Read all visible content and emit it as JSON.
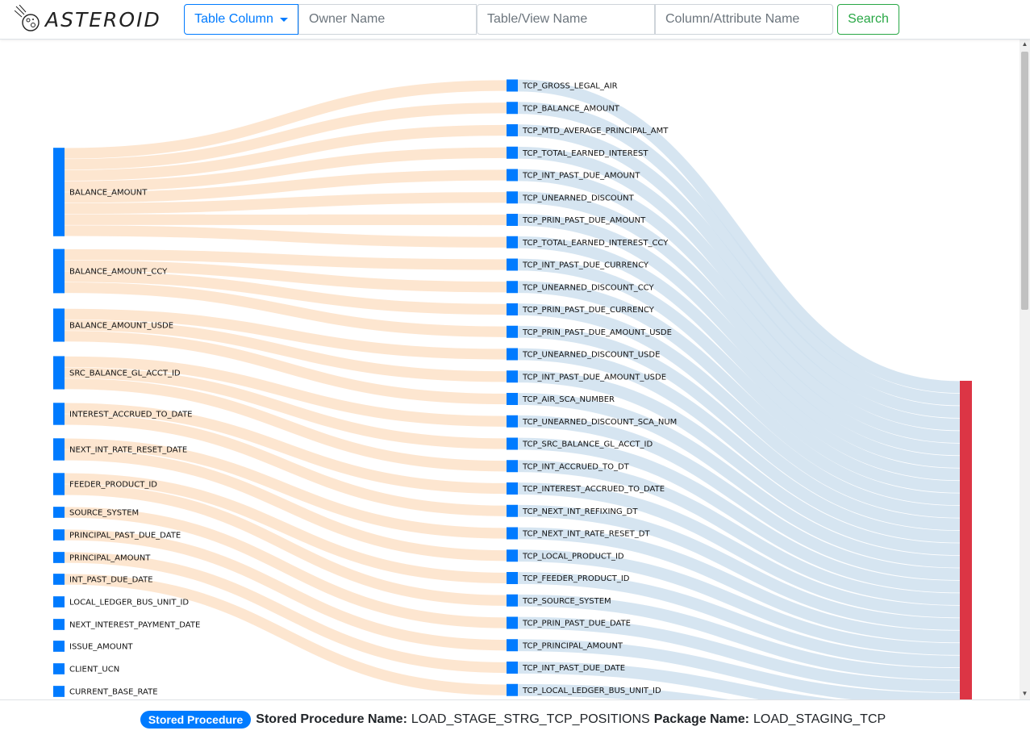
{
  "header": {
    "logo_text": "ASTEROID",
    "dropdown_label": "Table Column",
    "owner_placeholder": "Owner Name",
    "table_placeholder": "Table/View Name",
    "column_placeholder": "Column/Attribute Name",
    "search_label": "Search"
  },
  "diagram": {
    "sources": [
      {
        "label": "BALANCE_AMOUNT",
        "count": 8
      },
      {
        "label": "BALANCE_AMOUNT_CCY",
        "count": 4
      },
      {
        "label": "BALANCE_AMOUNT_USDE",
        "count": 3
      },
      {
        "label": "SRC_BALANCE_GL_ACCT_ID",
        "count": 3
      },
      {
        "label": "INTEREST_ACCRUED_TO_DATE",
        "count": 2
      },
      {
        "label": "NEXT_INT_RATE_RESET_DATE",
        "count": 2
      },
      {
        "label": "FEEDER_PRODUCT_ID",
        "count": 2
      },
      {
        "label": "SOURCE_SYSTEM",
        "count": 1
      },
      {
        "label": "PRINCIPAL_PAST_DUE_DATE",
        "count": 1
      },
      {
        "label": "PRINCIPAL_AMOUNT",
        "count": 1
      },
      {
        "label": "INT_PAST_DUE_DATE",
        "count": 1
      },
      {
        "label": "LOCAL_LEDGER_BUS_UNIT_ID",
        "count": 1
      },
      {
        "label": "NEXT_INTEREST_PAYMENT_DATE",
        "count": 1
      },
      {
        "label": "ISSUE_AMOUNT",
        "count": 1
      },
      {
        "label": "CLIENT_UCN",
        "count": 1
      },
      {
        "label": "CURRENT_BASE_RATE",
        "count": 1
      }
    ],
    "targets": [
      "TCP_GROSS_LEGAL_AIR",
      "TCP_BALANCE_AMOUNT",
      "TCP_MTD_AVERAGE_PRINCIPAL_AMT",
      "TCP_TOTAL_EARNED_INTEREST",
      "TCP_INT_PAST_DUE_AMOUNT",
      "TCP_UNEARNED_DISCOUNT",
      "TCP_PRIN_PAST_DUE_AMOUNT",
      "TCP_TOTAL_EARNED_INTEREST_CCY",
      "TCP_INT_PAST_DUE_CURRENCY",
      "TCP_UNEARNED_DISCOUNT_CCY",
      "TCP_PRIN_PAST_DUE_CURRENCY",
      "TCP_PRIN_PAST_DUE_AMOUNT_USDE",
      "TCP_UNEARNED_DISCOUNT_USDE",
      "TCP_INT_PAST_DUE_AMOUNT_USDE",
      "TCP_AIR_SCA_NUMBER",
      "TCP_UNEARNED_DISCOUNT_SCA_NUM",
      "TCP_SRC_BALANCE_GL_ACCT_ID",
      "TCP_INT_ACCRUED_TO_DT",
      "TCP_INTEREST_ACCRUED_TO_DATE",
      "TCP_NEXT_INT_REFIXING_DT",
      "TCP_NEXT_INT_RATE_RESET_DT",
      "TCP_LOCAL_PRODUCT_ID",
      "TCP_FEEDER_PRODUCT_ID",
      "TCP_SOURCE_SYSTEM",
      "TCP_PRIN_PAST_DUE_DATE",
      "TCP_PRINCIPAL_AMOUNT",
      "TCP_INT_PAST_DUE_DATE",
      "TCP_LOCAL_LEDGER_BUS_UNIT_ID"
    ],
    "colors": {
      "source_node": "#007bff",
      "target_node": "#007bff",
      "sink_node": "#dc3545",
      "source_link": "#fde3cb",
      "target_link": "#cfe0ee"
    }
  },
  "footer": {
    "badge": "Stored Procedure",
    "proc_label": "Stored Procedure Name:",
    "proc_value": "LOAD_STAGE_STRG_TCP_POSITIONS",
    "pkg_label": "Package Name:",
    "pkg_value": "LOAD_STAGING_TCP"
  }
}
